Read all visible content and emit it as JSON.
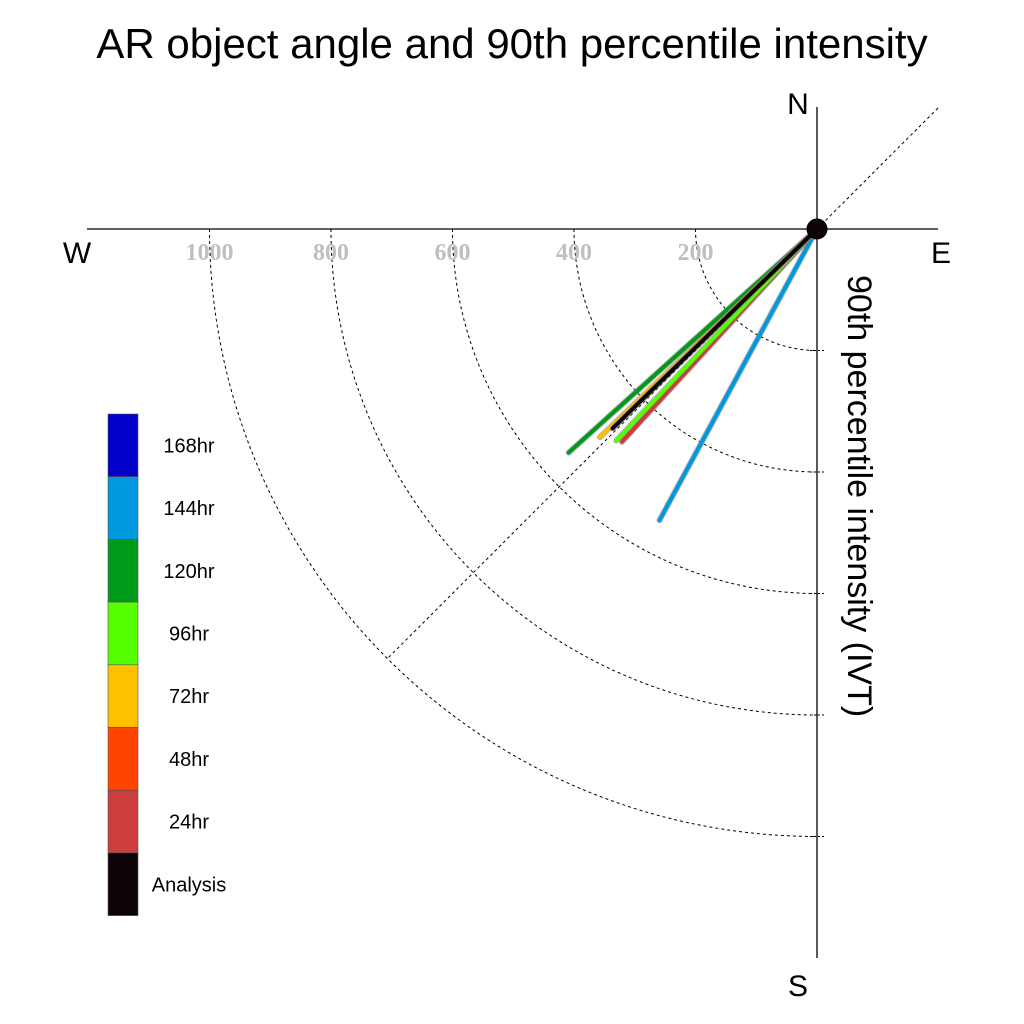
{
  "chart_data": {
    "type": "polar-vector",
    "title": "AR object angle and 90th percentile intensity",
    "radial_label": "90th percentile intensity (IVT)",
    "compass": {
      "north": "N",
      "south": "S",
      "east": "E",
      "west": "W"
    },
    "radial_ticks": [
      200,
      400,
      600,
      800,
      1000
    ],
    "radial_tick_labels": [
      "200",
      "400",
      "600",
      "800",
      "1000"
    ],
    "radial_max": 1200,
    "grid": true,
    "legend_position": "left",
    "series": [
      {
        "name": "168hr",
        "color": "#0000c8",
        "angle_deg": null,
        "intensity": null
      },
      {
        "name": "144hr",
        "color": "#0099dd",
        "angle_deg": 208.4,
        "intensity": 545
      },
      {
        "name": "120hr",
        "color": "#009a1a",
        "angle_deg": 228.0,
        "intensity": 550
      },
      {
        "name": "96hr",
        "color": "#55ff00",
        "angle_deg": 223.5,
        "intensity": 480
      },
      {
        "name": "72hr",
        "color": "#ffc000",
        "angle_deg": 226.2,
        "intensity": 495
      },
      {
        "name": "48hr",
        "color": "#ff4400",
        "angle_deg": null,
        "intensity": null
      },
      {
        "name": "24hr",
        "color": "#cc3d3d",
        "angle_deg": 222.5,
        "intensity": 475
      },
      {
        "name": "Analysis",
        "color": "#0d0208",
        "angle_deg": 225.7,
        "intensity": 470
      }
    ]
  }
}
